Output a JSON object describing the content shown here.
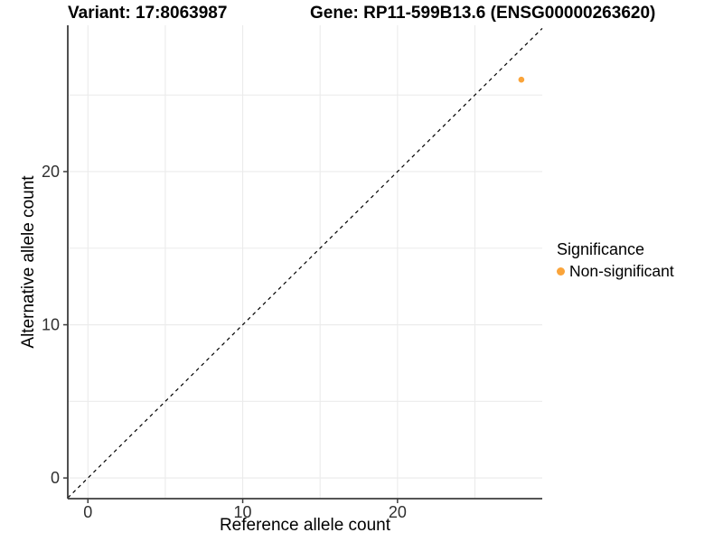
{
  "figure": {
    "title_left": "Variant: 17:8063987",
    "title_right": "Gene: RP11-599B13.6 (ENSG00000263620)"
  },
  "chart_data": {
    "type": "scatter",
    "title": "Variant: 17:8063987  /  Gene: RP11-599B13.6 (ENSG00000263620)",
    "xlabel": "Reference allele count",
    "ylabel": "Alternative allele count",
    "xlim": [
      -1.3,
      29.35
    ],
    "ylim": [
      -1.35,
      29.55
    ],
    "xticks": [
      0,
      10,
      20
    ],
    "yticks": [
      0,
      10,
      20
    ],
    "grid": true,
    "grid_interval": 5,
    "identity_line": {
      "type": "dashed",
      "equation": "y = x"
    },
    "series": [
      {
        "name": "Non-significant",
        "color": "#FAA43A",
        "points": [
          {
            "x": 28,
            "y": 26
          }
        ]
      }
    ],
    "legend": {
      "title": "Significance",
      "position": "right",
      "entries": [
        {
          "label": "Non-significant",
          "color": "#FAA43A"
        }
      ]
    },
    "colors": {
      "point": "#FAA43A",
      "axis_line": "#3d3d3d",
      "grid_line": "#ebebeb",
      "identity_line": "#000000",
      "tick_label": "#303030",
      "background": "#ffffff"
    }
  }
}
